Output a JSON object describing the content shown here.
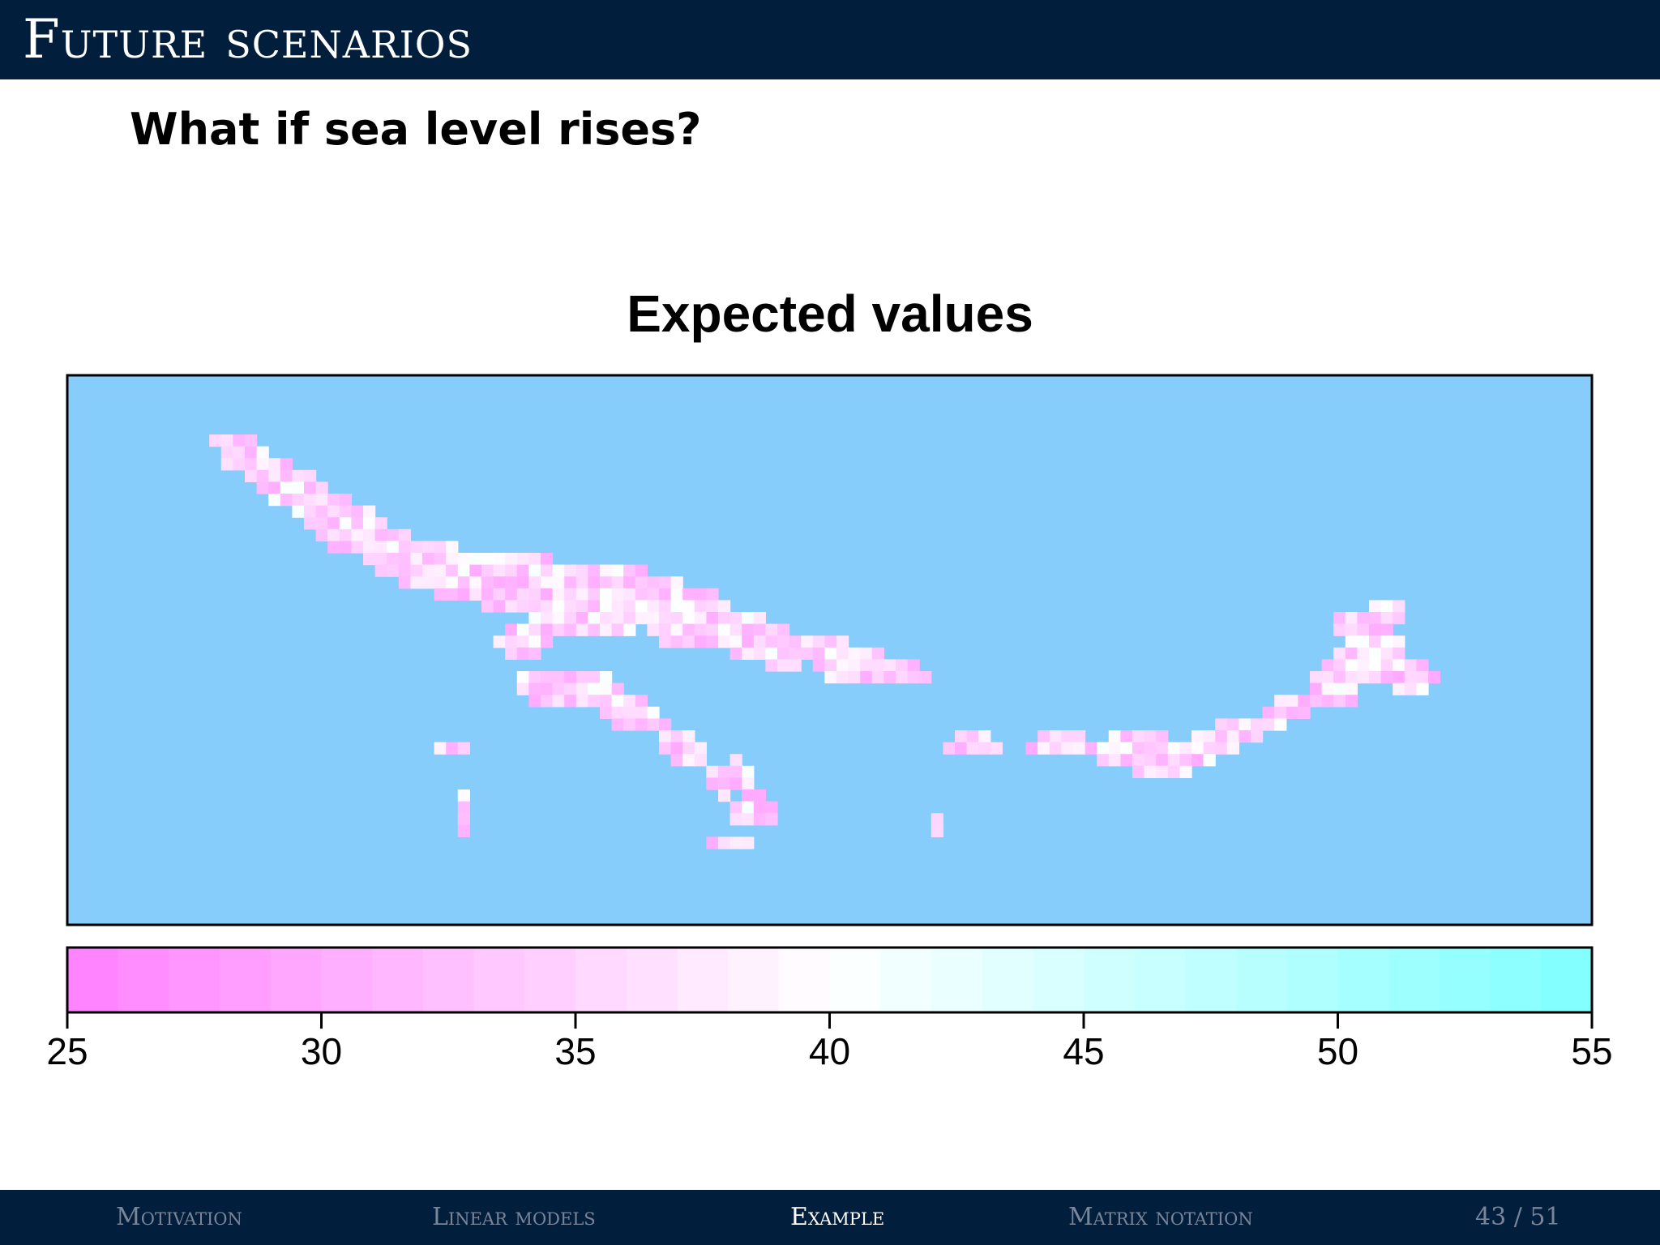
{
  "header": {
    "title": "Future scenarios"
  },
  "slide": {
    "question": "What if sea level rises?"
  },
  "chart_data": {
    "type": "heatmap",
    "title": "Expected values",
    "colorbar": {
      "range": [
        25,
        55
      ],
      "ticks": [
        25,
        30,
        35,
        40,
        45,
        50,
        55
      ],
      "low_color": "#ff80ff",
      "mid_color": "#ffffff",
      "high_color": "#80ffff",
      "mid_value": 40
    },
    "background_color": "#87cdfc",
    "grid": false
  },
  "footer": {
    "sections": [
      {
        "label": "Motivation",
        "active": false
      },
      {
        "label": "Linear models",
        "active": false
      },
      {
        "label": "Example",
        "active": true
      },
      {
        "label": "Matrix notation",
        "active": false
      }
    ],
    "page_current": "43",
    "page_sep": "/",
    "page_total": "51"
  }
}
